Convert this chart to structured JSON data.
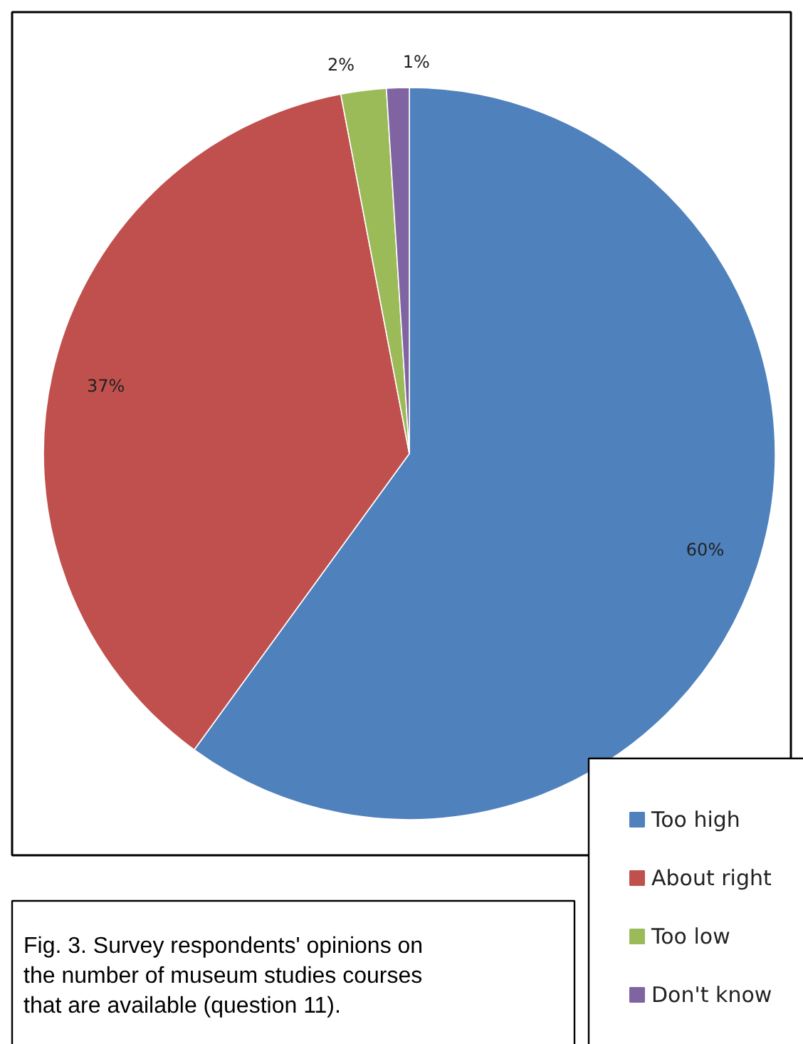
{
  "chart_data": {
    "type": "pie",
    "categories": [
      "Too high",
      "About right",
      "Too low",
      "Don't know"
    ],
    "values": [
      60,
      37,
      2,
      1
    ],
    "colors": [
      "#4f81bd",
      "#c0504d",
      "#9bbb59",
      "#8064a2"
    ],
    "value_labels": [
      "60%",
      "37%",
      "2%",
      "1%"
    ],
    "legend": "bottom right",
    "annotations": [
      "Fig. 3. Survey respondents' opinions on the number of museum studies courses that are available (question 11)."
    ]
  }
}
